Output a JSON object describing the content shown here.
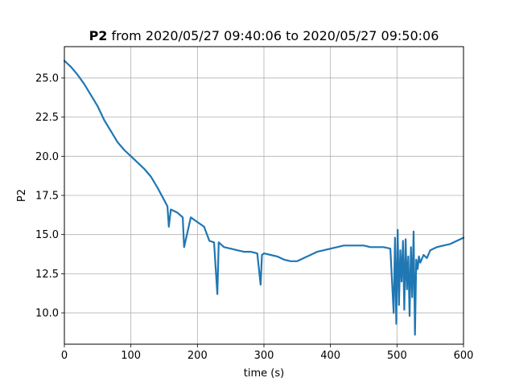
{
  "chart_data": {
    "type": "line",
    "title_bold": "P2",
    "title_rest": " from 2020/05/27 09:40:06 to 2020/05/27 09:50:06",
    "xlabel": "time (s)",
    "ylabel": "P2",
    "xlim": [
      0,
      600
    ],
    "ylim": [
      8.0,
      27.0
    ],
    "xticks": [
      0,
      100,
      200,
      300,
      400,
      500,
      600
    ],
    "yticks": [
      10.0,
      12.5,
      15.0,
      17.5,
      20.0,
      22.5,
      25.0
    ],
    "xtick_labels": [
      "0",
      "100",
      "200",
      "300",
      "400",
      "500",
      "600"
    ],
    "ytick_labels": [
      "10.0",
      "12.5",
      "15.0",
      "17.5",
      "20.0",
      "22.5",
      "25.0"
    ],
    "grid": true,
    "series": [
      {
        "color": "#1f77b4",
        "x": [
          0,
          10,
          20,
          30,
          40,
          50,
          60,
          70,
          80,
          90,
          100,
          110,
          120,
          130,
          140,
          150,
          155,
          157,
          160,
          170,
          178,
          180,
          190,
          200,
          210,
          218,
          225,
          230,
          232,
          240,
          250,
          260,
          270,
          280,
          290,
          295,
          297,
          300,
          310,
          320,
          330,
          340,
          350,
          360,
          370,
          380,
          390,
          400,
          410,
          420,
          430,
          440,
          450,
          460,
          470,
          480,
          490,
          495,
          497,
          499,
          501,
          503,
          505,
          507,
          509,
          511,
          513,
          515,
          517,
          519,
          521,
          523,
          525,
          527,
          529,
          531,
          533,
          535,
          540,
          545,
          550,
          555,
          560,
          570,
          580,
          590,
          600
        ],
        "y": [
          26.1,
          25.7,
          25.2,
          24.6,
          23.9,
          23.2,
          22.3,
          21.6,
          20.9,
          20.4,
          20.0,
          19.6,
          19.2,
          18.7,
          18.0,
          17.2,
          16.8,
          15.5,
          16.6,
          16.4,
          16.1,
          14.2,
          16.1,
          15.8,
          15.5,
          14.6,
          14.5,
          11.2,
          14.5,
          14.2,
          14.1,
          14.0,
          13.9,
          13.9,
          13.8,
          11.8,
          13.7,
          13.8,
          13.7,
          13.6,
          13.4,
          13.3,
          13.3,
          13.5,
          13.7,
          13.9,
          14.0,
          14.1,
          14.2,
          14.3,
          14.3,
          14.3,
          14.3,
          14.2,
          14.2,
          14.2,
          14.1,
          10.0,
          14.8,
          9.3,
          15.3,
          10.5,
          14.0,
          12.0,
          14.6,
          10.2,
          14.7,
          11.5,
          13.6,
          9.8,
          14.2,
          11.0,
          15.2,
          8.6,
          13.4,
          12.8,
          13.6,
          13.2,
          13.7,
          13.5,
          14.0,
          14.1,
          14.2,
          14.3,
          14.4,
          14.6,
          14.8
        ]
      }
    ]
  }
}
